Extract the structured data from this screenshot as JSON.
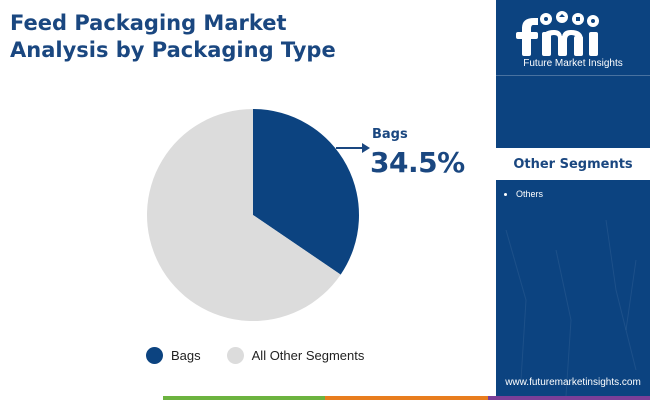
{
  "title": {
    "line1": "Feed Packaging Market",
    "line2": "Analysis by Packaging Type"
  },
  "chart_data": {
    "type": "pie",
    "categories": [
      "Bags",
      "All Other Segments"
    ],
    "values": [
      34.5,
      65.5
    ],
    "colors": [
      "#0c4380",
      "#dcdcdc"
    ],
    "callout": {
      "label": "Bags",
      "value": "34.5%"
    },
    "legend": [
      "Bags",
      "All Other Segments"
    ],
    "legend_position": "bottom"
  },
  "sidebar": {
    "brand_caption": "Future Market Insights",
    "heading": "Other Segments",
    "items": [
      "Others"
    ],
    "url": "www.futuremarketinsights.com"
  },
  "colors": {
    "brand_blue": "#0c4380",
    "title_blue": "#1a4780",
    "bar": [
      "#ffffff",
      "#6cb33f",
      "#e87d1e",
      "#7b3f98"
    ]
  }
}
